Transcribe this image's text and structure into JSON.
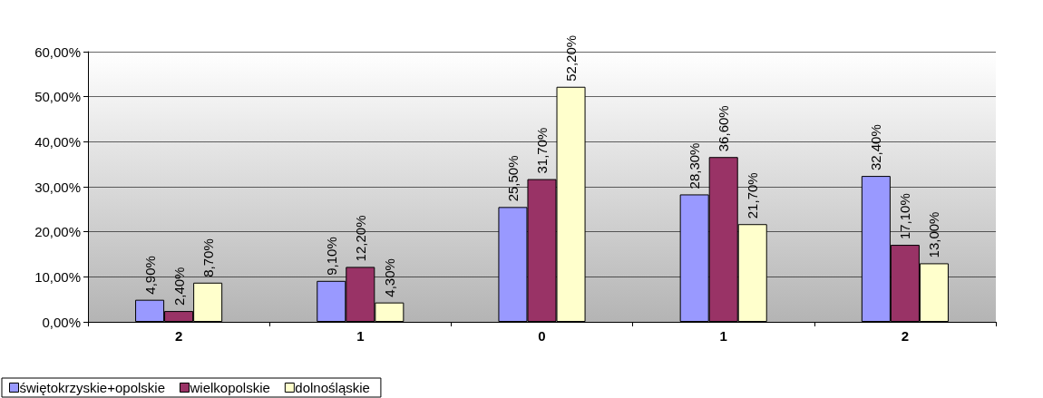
{
  "chart_data": {
    "type": "bar",
    "categories": [
      "2",
      "1",
      "0",
      "1",
      "2"
    ],
    "series": [
      {
        "name": "świętokrzyskie+opolskie",
        "color": "#9999ff",
        "values": [
          4.9,
          9.1,
          25.5,
          28.3,
          32.4
        ],
        "value_labels": [
          "4,90%",
          "9,10%",
          "25,50%",
          "28,30%",
          "32,40%"
        ]
      },
      {
        "name": "wielkopolskie",
        "color": "#993366",
        "values": [
          2.4,
          12.2,
          31.7,
          36.6,
          17.1
        ],
        "value_labels": [
          "2,40%",
          "12,20%",
          "31,70%",
          "36,60%",
          "17,10%"
        ]
      },
      {
        "name": "dolnośląskie",
        "color": "#ffffcc",
        "values": [
          8.7,
          4.3,
          52.2,
          21.7,
          13.0
        ],
        "value_labels": [
          "8,70%",
          "4,30%",
          "52,20%",
          "21,70%",
          "13,00%"
        ]
      }
    ],
    "ylim": [
      0,
      60
    ],
    "yticks": [
      {
        "value": 0,
        "label": "0,00%"
      },
      {
        "value": 10,
        "label": "10,00%"
      },
      {
        "value": 20,
        "label": "20,00%"
      },
      {
        "value": 30,
        "label": "30,00%"
      },
      {
        "value": 40,
        "label": "40,00%"
      },
      {
        "value": 50,
        "label": "50,00%"
      },
      {
        "value": 60,
        "label": "60,00%"
      }
    ],
    "grid": "y",
    "legend": "bottom left"
  }
}
